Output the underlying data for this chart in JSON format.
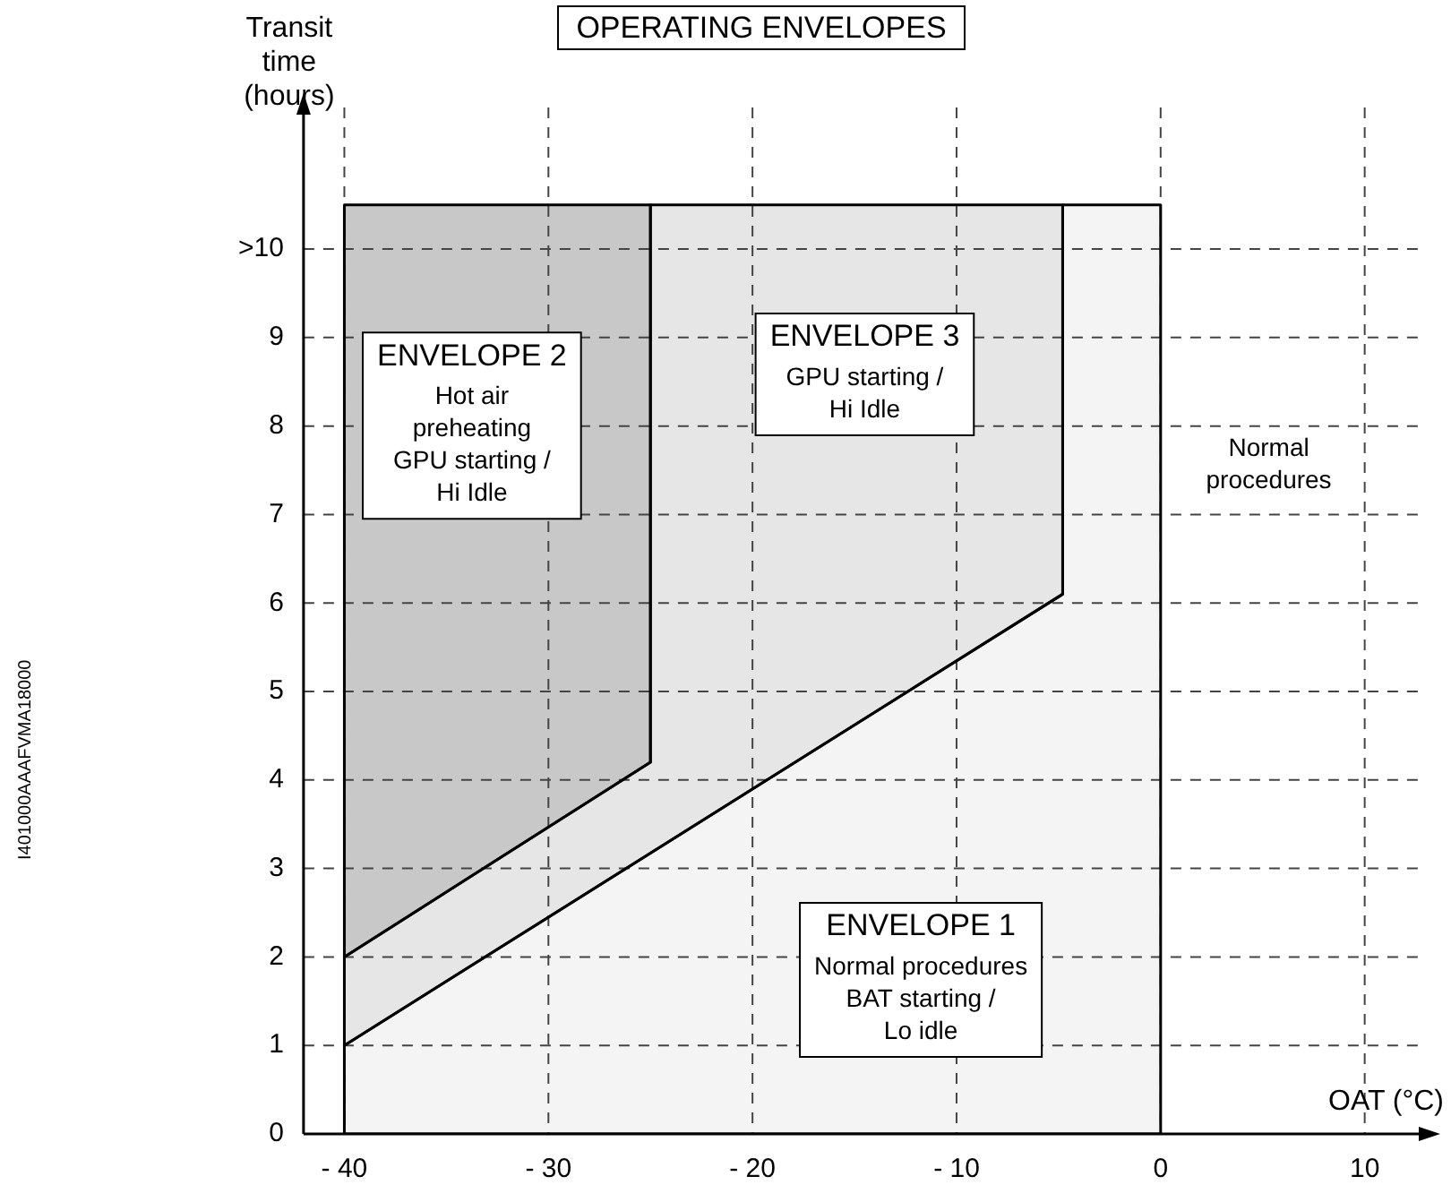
{
  "chart_data": {
    "type": "area",
    "title": "OPERATING ENVELOPES",
    "xlabel": "OAT (°C)",
    "ylabel": "Transit\ntime\n(hours)",
    "xlim": [
      -42,
      13
    ],
    "ylim": [
      0,
      11.6
    ],
    "xticks": [
      {
        "value": -40,
        "label": "- 40"
      },
      {
        "value": -30,
        "label": "- 30"
      },
      {
        "value": -20,
        "label": "- 20"
      },
      {
        "value": -10,
        "label": "- 10"
      },
      0,
      10
    ],
    "yticks": [
      0,
      1,
      2,
      3,
      4,
      5,
      6,
      7,
      8,
      9,
      {
        "value": 10,
        "label": ">10"
      }
    ],
    "grid": true,
    "legend": false,
    "series": [
      {
        "name": "ENVELOPE 1",
        "color": "#f4f4f4",
        "x": [
          -40,
          -4.8,
          -4.8,
          0,
          0,
          -40,
          -40
        ],
        "values": [
          1,
          6.1,
          10.5,
          10.5,
          0,
          0,
          1
        ]
      },
      {
        "name": "ENVELOPE 3",
        "color": "#e6e6e6",
        "x": [
          -40,
          -4.8,
          -4.8,
          -25,
          -25,
          -40,
          -40
        ],
        "values": [
          1,
          6.1,
          10.5,
          10.5,
          4.2,
          2,
          1
        ]
      },
      {
        "name": "ENVELOPE 2",
        "color": "#c8c8c8",
        "x": [
          -40,
          -25,
          -25,
          -40,
          -40
        ],
        "values": [
          2,
          4.2,
          10.5,
          10.5,
          2
        ]
      }
    ],
    "annotations": [
      "Normal procedures\nBAT starting /\nLo idle",
      "GPU starting /\nHi Idle",
      "Hot air\npreheating\nGPU starting /\nHi Idle",
      "Normal\nprocedures",
      "I401000AAAFVMA18000"
    ]
  }
}
